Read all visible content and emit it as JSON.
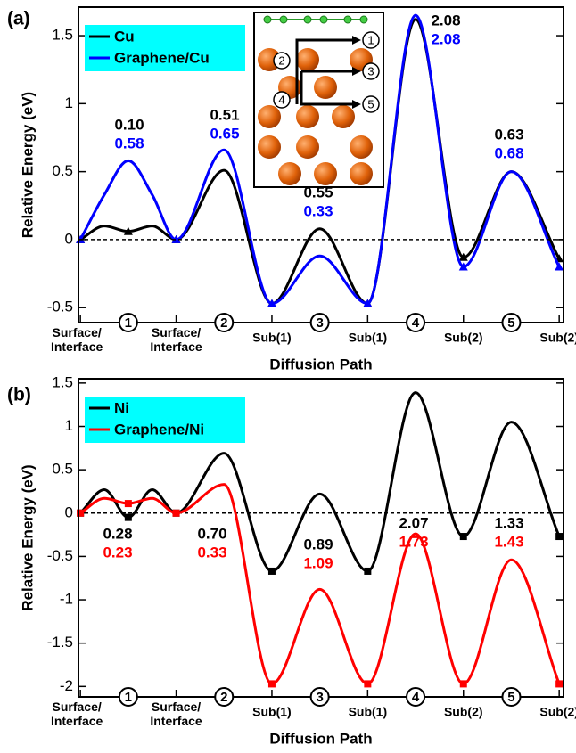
{
  "chart_data": [
    {
      "type": "line",
      "panel_label": "(a)",
      "ylabel": "Relative Energy (eV)",
      "xlabel": "Diffusion Path",
      "x": [
        1,
        1.5,
        2,
        2.5,
        3,
        4,
        5,
        6,
        7,
        8,
        9,
        10,
        11
      ],
      "xlim": [
        0.96,
        11.09
      ],
      "xticks": [
        {
          "value": 1,
          "label": "Surface/\nInterface"
        },
        {
          "value": 2,
          "label": "1"
        },
        {
          "value": 3,
          "label": "Surface/\nInterface"
        },
        {
          "value": 4,
          "label": "2"
        },
        {
          "value": 5,
          "label": "Sub(1)"
        },
        {
          "value": 6,
          "label": "3"
        },
        {
          "value": 7,
          "label": "Sub(1)"
        },
        {
          "value": 8,
          "label": "4"
        },
        {
          "value": 9,
          "label": "Sub(2)"
        },
        {
          "value": 10,
          "label": "5"
        },
        {
          "value": 11,
          "label": "Sub(2)"
        }
      ],
      "ylim": [
        -0.61,
        1.71
      ],
      "yticks": [
        -0.5,
        0,
        0.5,
        1,
        1.5
      ],
      "hline": 0,
      "marker": "triangle",
      "legend": "upper left",
      "series": [
        {
          "name": "Cu",
          "color": "#000000",
          "values": [
            0,
            0.1,
            0.06,
            0.1,
            0,
            0.51,
            -0.47,
            0.08,
            -0.47,
            1.62,
            -0.13,
            0.5,
            -0.14
          ]
        },
        {
          "name": "Graphene/Cu",
          "color": "#0000ff",
          "values": [
            0,
            0.33,
            0.58,
            0.33,
            0,
            0.66,
            -0.47,
            -0.12,
            -0.47,
            1.65,
            -0.2,
            0.5,
            -0.2
          ]
        }
      ],
      "annotations": [
        [
          "0.10",
          "0.58"
        ],
        [
          "0.51",
          "0.65"
        ],
        [
          "0.55",
          "0.33"
        ],
        [
          "2.08",
          "2.08"
        ],
        [
          "0.63",
          "0.68"
        ]
      ]
    },
    {
      "type": "line",
      "panel_label": "(b)",
      "ylabel": "Relative Energy (eV)",
      "xlabel": "Diffusion Path",
      "x": [
        1,
        1.5,
        2,
        2.5,
        3,
        4,
        5,
        6,
        7,
        8,
        9,
        10,
        11
      ],
      "xlim": [
        0.96,
        11.09
      ],
      "xticks": [
        {
          "value": 1,
          "label": "Surface/\nInterface"
        },
        {
          "value": 2,
          "label": "1"
        },
        {
          "value": 3,
          "label": "Surface/\nInterface"
        },
        {
          "value": 4,
          "label": "2"
        },
        {
          "value": 5,
          "label": "Sub(1)"
        },
        {
          "value": 6,
          "label": "3"
        },
        {
          "value": 7,
          "label": "Sub(1)"
        },
        {
          "value": 8,
          "label": "4"
        },
        {
          "value": 9,
          "label": "Sub(2)"
        },
        {
          "value": 10,
          "label": "5"
        },
        {
          "value": 11,
          "label": "Sub(2)"
        }
      ],
      "ylim": [
        -2.12,
        1.55
      ],
      "yticks": [
        -2,
        -1.5,
        -1,
        -0.5,
        0,
        0.5,
        1,
        1.5
      ],
      "hline": 0,
      "marker": "square",
      "legend": "upper left",
      "series": [
        {
          "name": "Ni",
          "color": "#000000",
          "values": [
            0,
            0.27,
            -0.05,
            0.27,
            0,
            0.69,
            -0.67,
            0.22,
            -0.67,
            1.39,
            -0.27,
            1.05,
            -0.27
          ]
        },
        {
          "name": "Graphene/Ni",
          "color": "#ff0000",
          "values": [
            0,
            0.17,
            0.11,
            0.17,
            0,
            0.33,
            -1.97,
            -0.88,
            -1.97,
            -0.24,
            -1.97,
            -0.54,
            -1.97
          ]
        }
      ],
      "annotations": [
        [
          "0.28",
          "0.23"
        ],
        [
          "0.70",
          "0.33"
        ],
        [
          "0.89",
          "1.09"
        ],
        [
          "2.07",
          "1.73"
        ],
        [
          "1.33",
          "1.43"
        ]
      ]
    }
  ]
}
